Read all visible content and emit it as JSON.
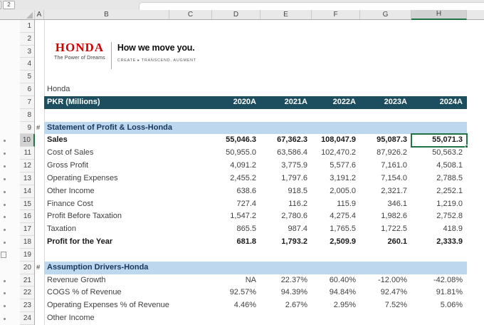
{
  "outline": {
    "button_label": "2",
    "dot_rows": [
      10,
      11,
      12,
      13,
      14,
      15,
      16,
      17,
      18,
      21,
      22,
      23,
      24
    ],
    "bracket_row": 19
  },
  "columns": {
    "letters": [
      "A",
      "B",
      "C",
      "D",
      "E",
      "F",
      "G",
      "H"
    ],
    "selected": "H"
  },
  "rows": {
    "count": 24,
    "selected": 10
  },
  "logo": {
    "brand": "HONDA",
    "slogan": "The Power of Dreams",
    "tagline": "How we move you.",
    "subtagline": "CREATE ▸ TRANSCEND, AUGMENT",
    "brand_color": "#CC0000"
  },
  "colors": {
    "table_header_bg": "#1C4E5F",
    "section_bg": "#BDD7EE",
    "selection_green": "#217346",
    "honda_red": "#CC0000"
  },
  "sheet": {
    "grid_rows": [
      {
        "r": 6,
        "type": "text",
        "label": "Honda"
      },
      {
        "r": 7,
        "type": "header",
        "label": "PKR (Millions)",
        "values": [
          "2020A",
          "2021A",
          "2022A",
          "2023A",
          "2024A"
        ]
      },
      {
        "r": 9,
        "type": "section",
        "marker": "#",
        "label": "Statement of Profit & Loss-Honda"
      },
      {
        "r": 10,
        "type": "data",
        "bold": true,
        "selected": true,
        "label": "Sales",
        "values": [
          "55,046.3",
          "67,362.3",
          "108,047.9",
          "95,087.3",
          "55,071.3"
        ]
      },
      {
        "r": 11,
        "type": "data",
        "label": "Cost of Sales",
        "values": [
          "50,955.0",
          "63,586.4",
          "102,470.2",
          "87,926.2",
          "50,563.2"
        ]
      },
      {
        "r": 12,
        "type": "data",
        "label": "Gross Profit",
        "values": [
          "4,091.2",
          "3,775.9",
          "5,577.6",
          "7,161.0",
          "4,508.1"
        ]
      },
      {
        "r": 13,
        "type": "data",
        "label": "Operating Expenses",
        "values": [
          "2,455.2",
          "1,797.6",
          "3,191.2",
          "7,154.0",
          "2,788.5"
        ]
      },
      {
        "r": 14,
        "type": "data",
        "label": "Other Income",
        "values": [
          "638.6",
          "918.5",
          "2,005.0",
          "2,321.7",
          "2,252.1"
        ]
      },
      {
        "r": 15,
        "type": "data",
        "label": "Finance Cost",
        "values": [
          "727.4",
          "116.2",
          "115.9",
          "346.1",
          "1,219.0"
        ]
      },
      {
        "r": 16,
        "type": "data",
        "label": "Profit Before Taxation",
        "values": [
          "1,547.2",
          "2,780.6",
          "4,275.4",
          "1,982.6",
          "2,752.8"
        ]
      },
      {
        "r": 17,
        "type": "data",
        "label": "Taxation",
        "values": [
          "865.5",
          "987.4",
          "1,765.5",
          "1,722.5",
          "418.9"
        ]
      },
      {
        "r": 18,
        "type": "data",
        "bold": true,
        "label": "Profit for the Year",
        "values": [
          "681.8",
          "1,793.2",
          "2,509.9",
          "260.1",
          "2,333.9"
        ]
      },
      {
        "r": 20,
        "type": "section",
        "marker": "#",
        "label": "Assumption Drivers-Honda"
      },
      {
        "r": 21,
        "type": "data",
        "label": "Revenue Growth",
        "values": [
          "NA",
          "22.37%",
          "60.40%",
          "-12.00%",
          "-42.08%"
        ]
      },
      {
        "r": 22,
        "type": "data",
        "label": "COGS % of Revenue",
        "values": [
          "92.57%",
          "94.39%",
          "94.84%",
          "92.47%",
          "91.81%"
        ]
      },
      {
        "r": 23,
        "type": "data",
        "label": "Operating Expenses % of Revenue",
        "values": [
          "4.46%",
          "2.67%",
          "2.95%",
          "7.52%",
          "5.06%"
        ]
      },
      {
        "r": 24,
        "type": "data",
        "label": "Other Income",
        "values": []
      }
    ]
  }
}
